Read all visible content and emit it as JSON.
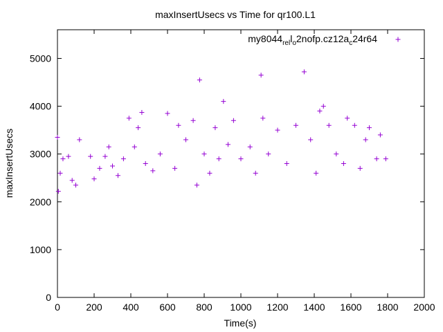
{
  "chart_data": {
    "type": "scatter",
    "title": "maxInsertUsecs vs Time for qr100.L1",
    "xlabel": "Time(s)",
    "ylabel": "maxInsertUsecs",
    "xlim": [
      0,
      2000
    ],
    "ylim": [
      0,
      5600
    ],
    "xticks": [
      "0",
      "200",
      "400",
      "600",
      "800",
      "1000",
      "1200",
      "1400",
      "1600",
      "1800",
      "2000"
    ],
    "yticks": [
      "0",
      "1000",
      "2000",
      "3000",
      "4000",
      "5000"
    ],
    "grid": false,
    "legend_position": "top-right",
    "series": [
      {
        "name": "my8044_rel_o2nofp.cz12a_c24r64",
        "legend_parts": {
          "a": "my8044",
          "b": "rel",
          "c": "o",
          "d": "2nofp.cz12a",
          "e": "c",
          "f": "24r64"
        },
        "color": "#9400d3",
        "marker": "plus",
        "points": [
          [
            0,
            3350
          ],
          [
            5,
            2220
          ],
          [
            15,
            2600
          ],
          [
            30,
            2900
          ],
          [
            60,
            2950
          ],
          [
            80,
            2450
          ],
          [
            100,
            2350
          ],
          [
            120,
            3300
          ],
          [
            180,
            2950
          ],
          [
            200,
            2480
          ],
          [
            230,
            2700
          ],
          [
            260,
            2950
          ],
          [
            280,
            3150
          ],
          [
            300,
            2750
          ],
          [
            330,
            2550
          ],
          [
            360,
            2900
          ],
          [
            390,
            3750
          ],
          [
            420,
            3150
          ],
          [
            440,
            3550
          ],
          [
            460,
            3870
          ],
          [
            480,
            2800
          ],
          [
            520,
            2650
          ],
          [
            560,
            3000
          ],
          [
            600,
            3850
          ],
          [
            640,
            2700
          ],
          [
            660,
            3600
          ],
          [
            700,
            3300
          ],
          [
            740,
            3700
          ],
          [
            760,
            2350
          ],
          [
            775,
            4550
          ],
          [
            800,
            3000
          ],
          [
            830,
            2600
          ],
          [
            860,
            3550
          ],
          [
            880,
            2900
          ],
          [
            905,
            4100
          ],
          [
            930,
            3200
          ],
          [
            960,
            3700
          ],
          [
            1000,
            2900
          ],
          [
            1050,
            3150
          ],
          [
            1080,
            2600
          ],
          [
            1110,
            4650
          ],
          [
            1120,
            3750
          ],
          [
            1150,
            3000
          ],
          [
            1200,
            3500
          ],
          [
            1250,
            2800
          ],
          [
            1300,
            3600
          ],
          [
            1345,
            4720
          ],
          [
            1380,
            3300
          ],
          [
            1410,
            2600
          ],
          [
            1430,
            3900
          ],
          [
            1450,
            4000
          ],
          [
            1480,
            3600
          ],
          [
            1520,
            3000
          ],
          [
            1560,
            2800
          ],
          [
            1580,
            3750
          ],
          [
            1620,
            3600
          ],
          [
            1650,
            2700
          ],
          [
            1680,
            3300
          ],
          [
            1700,
            3550
          ],
          [
            1740,
            2900
          ],
          [
            1760,
            3400
          ],
          [
            1790,
            2900
          ]
        ]
      }
    ]
  }
}
